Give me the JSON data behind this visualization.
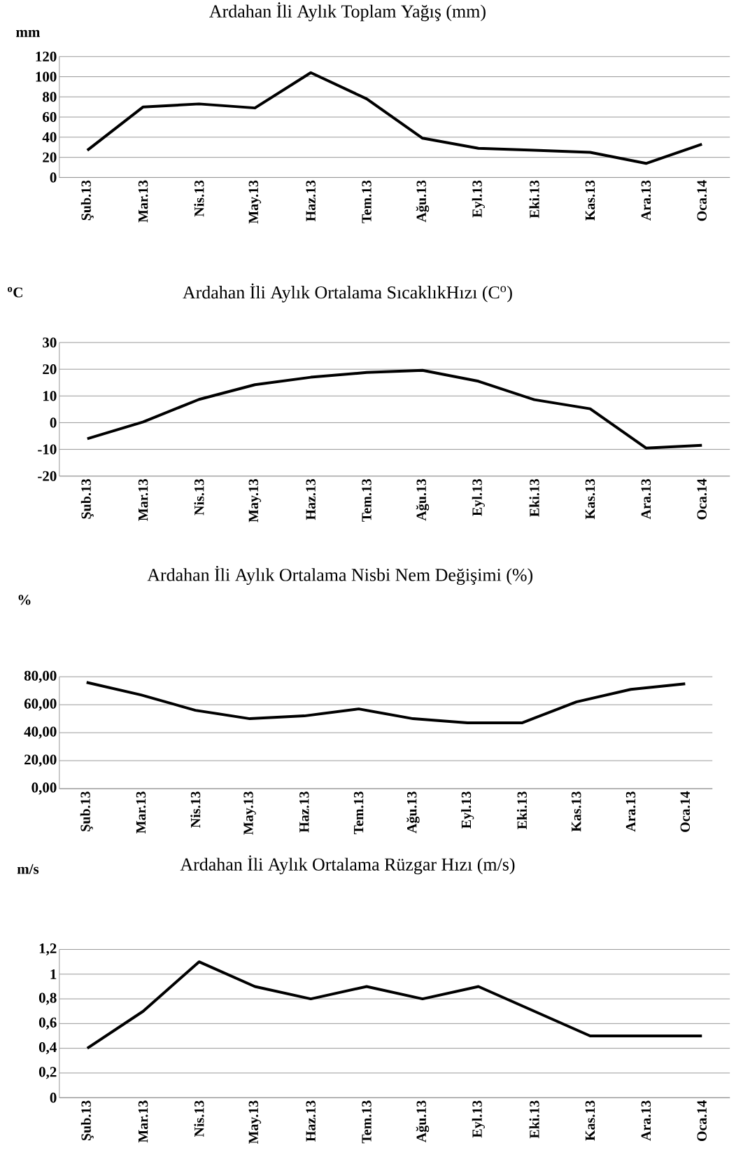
{
  "chart_data": [
    {
      "type": "line",
      "title": "Ardahan İli Aylık Toplam Yağış (mm)",
      "ylabel": "mm",
      "categories": [
        "Şub.13",
        "Mar.13",
        "Nis.13",
        "May.13",
        "Haz.13",
        "Tem.13",
        "Ağu.13",
        "Eyl.13",
        "Eki.13",
        "Kas.13",
        "Ara.13",
        "Oca.14"
      ],
      "values": [
        27,
        70,
        73,
        69,
        104,
        78,
        39,
        29,
        27,
        25,
        14,
        33
      ],
      "color": "#000000",
      "ylim": [
        0,
        120
      ],
      "yticks": [
        0,
        20,
        40,
        60,
        80,
        100,
        120
      ],
      "grid": "y"
    },
    {
      "type": "line",
      "title": "Ardahan İli Aylık Ortalama SıcaklıkHızı (C$^{o}$)",
      "ylabel": "$^{o}$C",
      "categories": [
        "Şub.13",
        "Mar.13",
        "Nis.13",
        "May.13",
        "Haz.13",
        "Tem.13",
        "Ağu.13",
        "Eyl.13",
        "Eki.13",
        "Kas.13",
        "Ara.13",
        "Oca.14"
      ],
      "values": [
        -6,
        0.3,
        8.7,
        14.2,
        17,
        18.8,
        19.6,
        15.5,
        8.6,
        5.2,
        -9.5,
        -8.5
      ],
      "color": "#000000",
      "ylim": [
        -20,
        30
      ],
      "yticks": [
        -20,
        -10,
        0,
        10,
        20,
        30
      ],
      "grid": "y"
    },
    {
      "type": "line",
      "title": "Ardahan İli Aylık Ortalama Nisbi Nem Değişimi (%)",
      "ylabel": "%",
      "categories": [
        "Şub.13",
        "Mar.13",
        "Nis.13",
        "May.13",
        "Haz.13",
        "Tem.13",
        "Ağu.13",
        "Eyl.13",
        "Eki.13",
        "Kas.13",
        "Ara.13",
        "Oca.14"
      ],
      "values": [
        76,
        67,
        56,
        50,
        52,
        57,
        50,
        47,
        47,
        62,
        71,
        75
      ],
      "color": "#000000",
      "ylim": [
        0,
        80
      ],
      "yticks": [
        {
          "value": 0,
          "label": "0,00"
        },
        {
          "value": 20,
          "label": "20,00"
        },
        {
          "value": 40,
          "label": "40,00"
        },
        {
          "value": 60,
          "label": "60,00"
        },
        {
          "value": 80,
          "label": "80,00"
        }
      ],
      "grid": "y"
    },
    {
      "type": "line",
      "title": "Ardahan İli Aylık Ortalama Rüzgar Hızı (m/s)",
      "ylabel": "m/s",
      "categories": [
        "Şub.13",
        "Mar.13",
        "Nis.13",
        "May.13",
        "Haz.13",
        "Tem.13",
        "Ağu.13",
        "Eyl.13",
        "Eki.13",
        "Kas.13",
        "Ara.13",
        "Oca.14"
      ],
      "values": [
        0.4,
        0.7,
        1.1,
        0.9,
        0.8,
        0.9,
        0.8,
        0.9,
        0.7,
        0.5,
        0.5,
        0.5
      ],
      "color": "#000000",
      "ylim": [
        0,
        1.2
      ],
      "yticks": [
        0,
        {
          "value": 0.2,
          "label": "0,2"
        },
        {
          "value": 0.4,
          "label": "0,4"
        },
        {
          "value": 0.6,
          "label": "0,6"
        },
        {
          "value": 0.8,
          "label": "0,8"
        },
        1,
        {
          "value": 1.2,
          "label": "1,2"
        }
      ],
      "grid": "y"
    }
  ]
}
